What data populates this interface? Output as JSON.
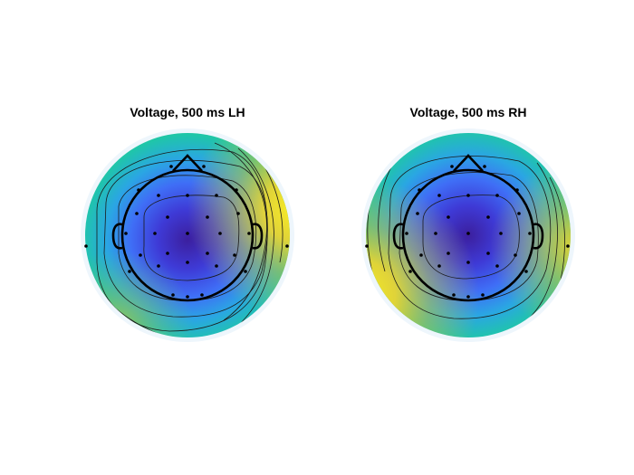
{
  "figure": {
    "left": {
      "title": "Voltage, 500 ms LH"
    },
    "right": {
      "title": "Voltage, 500 ms RH"
    }
  },
  "colors": {
    "colormap": [
      "#3c1f9e",
      "#3e3ad6",
      "#3f6ef6",
      "#2aa6e3",
      "#1fc6a8",
      "#5cd05a",
      "#c8c136",
      "#f4d62a",
      "#fbee22"
    ],
    "halo": "#eef6fc",
    "contour": "#1a1a1a",
    "electrode": "#000000"
  },
  "icons": [
    "head-outline-icon",
    "nose-icon",
    "ear-icon"
  ]
}
